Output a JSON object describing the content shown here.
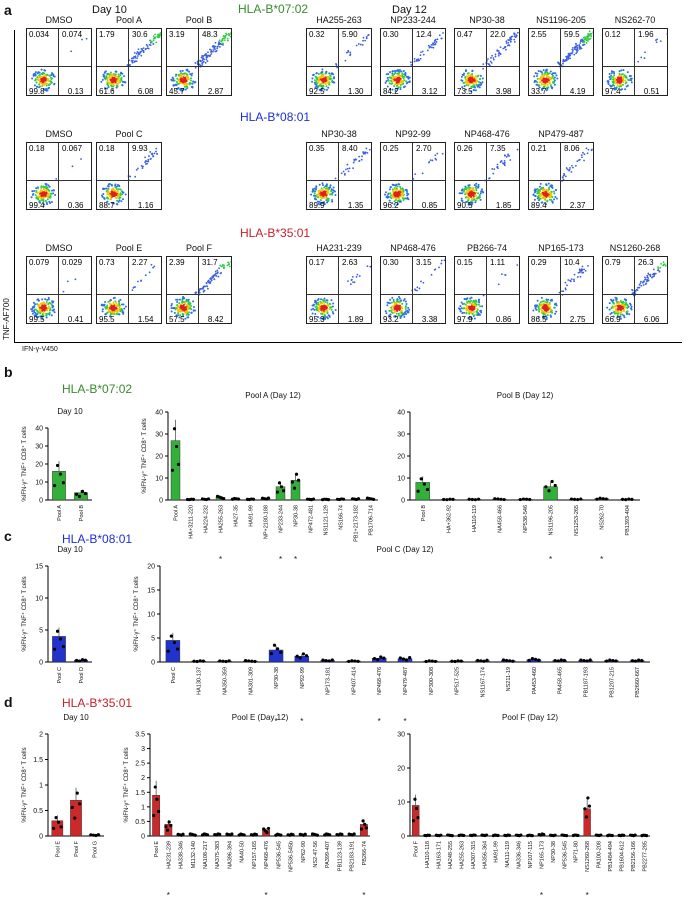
{
  "panel_a": {
    "letter": "a",
    "day10": "Day 10",
    "day12": "Day 12",
    "y_axis": "TNF-AF700",
    "x_axis": "IFN-γ-V450",
    "rows": [
      {
        "allele": "HLA-B*07:02",
        "color": "#3a8a2e",
        "left": [
          {
            "label": "DMSO",
            "ul": "0.034",
            "ur": "0.074",
            "ll": "99.8",
            "lr": "0.13",
            "density": 0.02
          },
          {
            "label": "Pool A",
            "ul": "1.79",
            "ur": "30.6",
            "ll": "61.6",
            "lr": "6.08",
            "density": 0.5
          },
          {
            "label": "Pool B",
            "ul": "3.19",
            "ur": "48.3",
            "ll": "45.7",
            "lr": "2.87",
            "density": 0.7
          }
        ],
        "right": [
          {
            "label": "HA255-263",
            "ul": "0.32",
            "ur": "5.90",
            "ll": "92.5",
            "lr": "1.30",
            "density": 0.15
          },
          {
            "label": "NP233-244",
            "ul": "0.30",
            "ur": "12.4",
            "ll": "84.2",
            "lr": "3.12",
            "density": 0.25
          },
          {
            "label": "NP30-38",
            "ul": "0.47",
            "ur": "22.0",
            "ll": "73.5",
            "lr": "3.98",
            "density": 0.4
          },
          {
            "label": "NS1196-205",
            "ul": "2.55",
            "ur": "59.5",
            "ll": "33.7",
            "lr": "4.19",
            "density": 0.8
          },
          {
            "label": "NS262-70",
            "ul": "0.12",
            "ur": "1.96",
            "ll": "97.4",
            "lr": "0.51",
            "density": 0.06
          }
        ]
      },
      {
        "allele": "HLA-B*08:01",
        "color": "#1f2fd6",
        "left": [
          {
            "label": "DMSO",
            "ul": "0.18",
            "ur": "0.067",
            "ll": "99.4",
            "lr": "0.36",
            "density": 0.02
          },
          {
            "label": "Pool C",
            "ul": "0.18",
            "ur": "9.93",
            "ll": "88.7",
            "lr": "1.16",
            "density": 0.22
          }
        ],
        "right": [
          {
            "label": "NP30-38",
            "ul": "0.35",
            "ur": "8.40",
            "ll": "89.9",
            "lr": "1.35",
            "density": 0.2
          },
          {
            "label": "NP92-99",
            "ul": "0.25",
            "ur": "2.70",
            "ll": "96.2",
            "lr": "0.85",
            "density": 0.08
          },
          {
            "label": "NP468-476",
            "ul": "0.26",
            "ur": "7.35",
            "ll": "90.5",
            "lr": "1.85",
            "density": 0.18
          },
          {
            "label": "NP479-487",
            "ul": "0.21",
            "ur": "8.06",
            "ll": "89.4",
            "lr": "2.37",
            "density": 0.2
          }
        ]
      },
      {
        "allele": "HLA-B*35:01",
        "color": "#c8202a",
        "left": [
          {
            "label": "DMSO",
            "ul": "0.079",
            "ur": "0.029",
            "ll": "99.5",
            "lr": "0.41",
            "density": 0.02
          },
          {
            "label": "Pool E",
            "ul": "0.73",
            "ur": "2.27",
            "ll": "95.5",
            "lr": "1.54",
            "density": 0.08
          },
          {
            "label": "Pool F",
            "ul": "2.39",
            "ur": "31.7",
            "ll": "57.5",
            "lr": "8.42",
            "density": 0.5
          }
        ],
        "right": [
          {
            "label": "HA231-239",
            "ul": "0.17",
            "ur": "2.63",
            "ll": "95.3",
            "lr": "1.89",
            "density": 0.08
          },
          {
            "label": "NP468-476",
            "ul": "0.30",
            "ur": "3.15",
            "ll": "93.2",
            "lr": "3.38",
            "density": 0.1
          },
          {
            "label": "PB266-74",
            "ul": "0.15",
            "ur": "1.11",
            "ll": "97.9",
            "lr": "0.86",
            "density": 0.04
          },
          {
            "label": "NP165-173",
            "ul": "0.29",
            "ur": "10.4",
            "ll": "86.5",
            "lr": "2.75",
            "density": 0.22
          },
          {
            "label": "NS1260-268",
            "ul": "0.79",
            "ur": "26.3",
            "ll": "66.9",
            "lr": "6.06",
            "density": 0.45
          }
        ]
      }
    ]
  },
  "chart_data": [
    {
      "panel": "b",
      "allele": "HLA-B*07:02",
      "title": "Day 10",
      "type": "bar",
      "ylabel": "%IFN-γ⁺ TNF⁺ CD8⁺ T cells",
      "color": "#33b03a",
      "categories": [
        "Pool A",
        "Pool B"
      ],
      "values": [
        16,
        4
      ],
      "ylim": [
        0,
        40
      ],
      "yticks": [
        0,
        10,
        20,
        30,
        40
      ]
    },
    {
      "panel": "b",
      "title": "Pool A (Day 12)",
      "type": "bar",
      "ylabel": "%IFN-γ⁺ TNF⁺ CD8⁺ T cells",
      "color": "#33b03a",
      "categories": [
        "Pool A",
        "HA+3211-220",
        "HA224-232",
        "HA255-263",
        "HA27-35",
        "HA91-99",
        "NP+2180-188",
        "NP233-244",
        "NP30-38",
        "NP472-481",
        "NS1121-129",
        "NS166-74",
        "PB1+2173-182",
        "PB1706-714"
      ],
      "values": [
        27,
        0.3,
        0.4,
        1.2,
        0.5,
        0.3,
        0.6,
        6,
        9,
        0.3,
        0.3,
        0.4,
        0.5,
        0.6
      ],
      "starred": [
        3,
        7,
        8
      ],
      "ylim": [
        0,
        40
      ],
      "yticks": [
        0,
        10,
        20,
        30,
        40
      ]
    },
    {
      "panel": "b",
      "title": "Pool B (Day 12)",
      "type": "bar",
      "ylabel": "",
      "color": "#33b03a",
      "categories": [
        "Pool B",
        "HA+362-92",
        "HA110-119",
        "NA458-466",
        "NP538-546",
        "NS1196-205",
        "NS1253-265",
        "NS262-70",
        "PB1393-404"
      ],
      "values": [
        8,
        0.3,
        0.3,
        0.4,
        0.3,
        6,
        0.3,
        0.6,
        0.3
      ],
      "starred": [
        5,
        7
      ],
      "ylim": [
        0,
        40
      ],
      "yticks": [
        0,
        10,
        20,
        30,
        40
      ]
    },
    {
      "panel": "c",
      "allele": "HLA-B*08:01",
      "title": "Day 10",
      "type": "bar",
      "ylabel": "%IFN-γ⁺ TNF⁺ CD8⁺ T cells",
      "color": "#2233cc",
      "categories": [
        "Pool C",
        "Pool D"
      ],
      "values": [
        4,
        0.3
      ],
      "ylim": [
        0,
        15
      ],
      "yticks": [
        0,
        5,
        10,
        15
      ]
    },
    {
      "panel": "c",
      "title": "Pool C (Day 12)",
      "type": "bar",
      "ylabel": "%IFN-γ⁺ TNF⁺ CD8⁺ T cells",
      "color": "#2233cc",
      "categories": [
        "Pool C",
        "HA130-137",
        "NA350-359",
        "NA301-309",
        "NP30-38",
        "NP92-99",
        "NP173-181",
        "NP407-414",
        "NP468-476",
        "NP479-487",
        "NP300-308",
        "NP517-525",
        "NS1167-174",
        "NS211-19",
        "PA453-460",
        "PA458-465",
        "PB1187-193",
        "PB1207-215",
        "PB2660-667"
      ],
      "values": [
        4.5,
        0.2,
        0.2,
        0.2,
        2.5,
        1.2,
        0.3,
        0.2,
        0.8,
        0.7,
        0.2,
        0.2,
        0.3,
        0.3,
        0.5,
        0.3,
        0.3,
        0.3,
        0.3
      ],
      "starred": [
        4,
        5,
        8,
        9
      ],
      "ylim": [
        0,
        20
      ],
      "yticks": [
        0,
        5,
        10,
        15,
        20
      ]
    },
    {
      "panel": "d",
      "allele": "HLA-B*35:01",
      "title": "Day 10",
      "type": "bar",
      "ylabel": "%IFN-γ⁺ TNF⁺ CD8⁺ T cells",
      "color": "#cc2a2a",
      "categories": [
        "Pool E",
        "Pool F",
        "Pool G"
      ],
      "values": [
        0.3,
        0.7,
        0.02
      ],
      "ylim": [
        0,
        2
      ],
      "yticks": [
        0,
        0.5,
        1,
        1.5,
        2
      ]
    },
    {
      "panel": "d",
      "title": "Pool E (Day 12)",
      "type": "bar",
      "ylabel": "%IFN-γ⁺ TNF⁺ CD8⁺ T cells",
      "color": "#cc2a2a",
      "categories": [
        "Pool E",
        "HA231-239",
        "HA338-346",
        "M1132-140",
        "NA108-217",
        "NA375-383",
        "NA396-394",
        "NA40-50",
        "NP157-165",
        "NP468-476",
        "NP536-545",
        "NP536-545b",
        "NP62-90",
        "NS2-47-56",
        "PA399-407",
        "PB1123-139",
        "PB2183-191",
        "PB266-74"
      ],
      "values": [
        1.4,
        0.4,
        0.05,
        0.05,
        0.05,
        0.05,
        0.05,
        0.05,
        0.05,
        0.2,
        0.05,
        0.05,
        0.05,
        0.05,
        0.05,
        0.05,
        0.05,
        0.4
      ],
      "starred": [
        1,
        9,
        17
      ],
      "ylim": [
        0,
        3.5
      ],
      "yticks": [
        0,
        0.5,
        1,
        1.5,
        2,
        2.5,
        3,
        3.5
      ]
    },
    {
      "panel": "d",
      "title": "Pool F (Day 12)",
      "type": "bar",
      "ylabel": "",
      "color": "#cc2a2a",
      "categories": [
        "Pool F",
        "HA110-118",
        "HA163-171",
        "HA248-255",
        "HA255-263",
        "HA307-315",
        "HA356-364",
        "HA91-99",
        "NA111-119",
        "NA336-346",
        "NP107-115",
        "NP165-173",
        "NP30-38",
        "NP536-545",
        "NP71-80",
        "NS1260-268",
        "PA100-208",
        "PB1484-494",
        "PB1604-612",
        "PB2156-166",
        "PB2277-285"
      ],
      "values": [
        9,
        0.2,
        0.2,
        0.2,
        0.2,
        0.2,
        0.2,
        0.2,
        0.2,
        0.2,
        0.2,
        0.5,
        0.2,
        0.2,
        0.2,
        8,
        0.2,
        0.2,
        0.2,
        0.2,
        0.2
      ],
      "starred": [
        11,
        15
      ],
      "ylim": [
        0,
        30
      ],
      "yticks": [
        0,
        10,
        20,
        30
      ]
    }
  ],
  "panel_b": {
    "letter": "b",
    "allele": "HLA-B*07:02",
    "color": "#3a8a2e"
  },
  "panel_c": {
    "letter": "c",
    "allele": "HLA-B*08:01",
    "color": "#1f2fd6"
  },
  "panel_d": {
    "letter": "d",
    "allele": "HLA-B*35:01",
    "color": "#c8202a"
  }
}
